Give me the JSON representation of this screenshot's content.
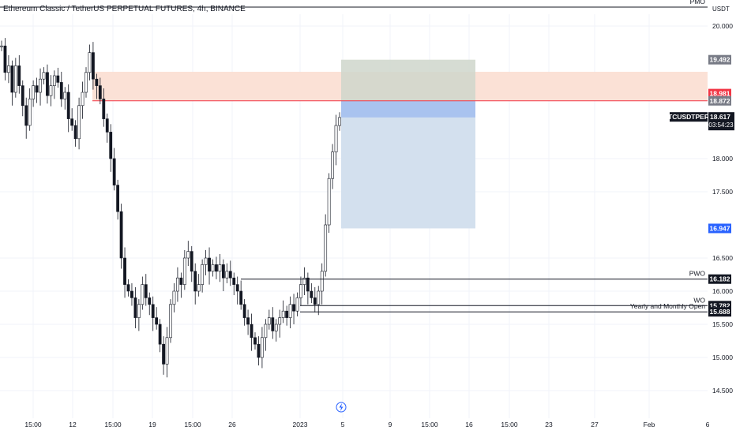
{
  "title": "Ethereum Classic / TetherUS PERPETUAL FUTURES, 4h, BINANCE",
  "currency": "USDT",
  "chart_data": {
    "type": "candlestick",
    "ylim": [
      14.3,
      20.35
    ],
    "yticks": [
      "20.000",
      "18.000",
      "17.500",
      "16.500",
      "16.000",
      "15.500",
      "15.000",
      "14.500"
    ],
    "ytick_values": [
      20.0,
      18.0,
      17.5,
      16.5,
      16.0,
      15.5,
      15.0,
      14.5
    ],
    "xticks": [
      "15:00",
      "12",
      "15:00",
      "19",
      "15:00",
      "26",
      "2023",
      "5",
      "9",
      "15:00",
      "16",
      "15:00",
      "23",
      "27",
      "Feb",
      "6"
    ],
    "close_series": [
      19.7,
      19.3,
      19.4,
      19.0,
      19.4,
      19.1,
      18.8,
      18.5,
      18.9,
      19.1,
      19.0,
      19.2,
      19.3,
      18.95,
      19.1,
      19.25,
      19.15,
      18.9,
      19.0,
      18.6,
      18.5,
      18.3,
      18.8,
      19.0,
      19.3,
      19.6,
      19.2,
      19.1,
      18.9,
      18.6,
      18.4,
      18.0,
      17.6,
      17.2,
      16.5,
      16.1,
      16.0,
      15.9,
      15.6,
      15.8,
      16.1,
      15.9,
      15.8,
      15.6,
      15.5,
      15.2,
      14.9,
      15.3,
      15.8,
      16.0,
      16.2,
      16.1,
      16.5,
      16.6,
      16.3,
      16.0,
      16.1,
      16.4,
      16.5,
      16.3,
      16.4,
      16.3,
      16.4,
      16.2,
      16.3,
      16.2,
      16.1,
      16.0,
      15.8,
      15.6,
      15.5,
      15.3,
      15.2,
      15.0,
      15.3,
      15.5,
      15.6,
      15.4,
      15.5,
      15.6,
      15.7,
      15.6,
      15.8,
      15.7,
      15.9,
      16.1,
      16.2,
      16.0,
      15.9,
      15.8,
      16.0,
      16.3,
      17.0,
      17.7,
      18.1,
      18.5,
      18.62
    ]
  },
  "zones": {
    "resistance": {
      "from": 18.872,
      "to": 19.31,
      "color": "#fbe1d6"
    },
    "position_stop": {
      "from": 18.872,
      "to": 19.492,
      "color": "#cfd6cb"
    },
    "position_entry": {
      "from": 18.62,
      "to": 18.872,
      "color": "#a9c3ef"
    },
    "position_target": {
      "from": 16.947,
      "to": 18.62,
      "color": "#d3e0ee"
    }
  },
  "levels": [
    {
      "name": "PMO",
      "value": 20.28,
      "label": "PMO"
    },
    {
      "name": "PWO",
      "value": 16.182,
      "label": "PWO"
    },
    {
      "name": "WO",
      "value": 15.782,
      "label": "WO"
    },
    {
      "name": "Yearly and Monthly Open",
      "value": 15.688,
      "label": "Yearly and Monthly Open"
    }
  ],
  "price_tags": [
    {
      "value": "19.492",
      "price": 19.492,
      "color": "#787b86"
    },
    {
      "value": "18.981",
      "price": 18.981,
      "color": "#f23645"
    },
    {
      "value": "18.872",
      "price": 18.872,
      "color": "#787b86"
    },
    {
      "value": "16.947",
      "price": 16.947,
      "color": "#2962ff"
    },
    {
      "value": "16.182",
      "price": 16.182,
      "color": "#131722"
    },
    {
      "value": "15.782",
      "price": 15.782,
      "color": "#131722"
    },
    {
      "value": "15.688",
      "price": 15.688,
      "color": "#131722"
    }
  ],
  "symbol_tag": {
    "symbol": "ETCUSDTPERP",
    "price": "18.617",
    "countdown": "03:54:23",
    "color": "#131722"
  },
  "icons": {
    "event": "lightning-icon"
  },
  "colors": {
    "candle": "#131722",
    "grid": "#f0f3fa",
    "line": "#131722",
    "red_line": "#f23645"
  }
}
